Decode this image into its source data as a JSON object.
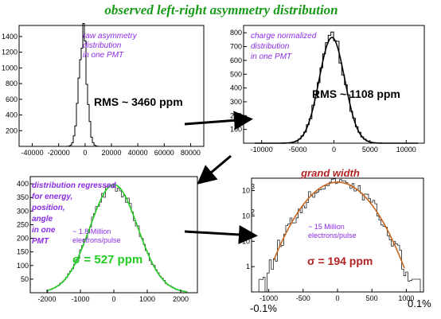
{
  "title": "observed left-right asymmetry distribution",
  "colors": {
    "title": "#1a9a1a",
    "annotation": "#8a2be2",
    "green_curve": "#22cc22",
    "orange_curve": "#c8641e",
    "dark_red_text": "#b22222",
    "sigma_green": "#22cc22",
    "arrow": "#000000"
  },
  "panels": [
    {
      "id": "raw",
      "annotation": [
        "raw asymmetry",
        "distribution",
        "in one PMT"
      ],
      "stat": "RMS ~ 3460 ppm",
      "x_ticks": [
        "-40000",
        "-20000",
        "0",
        "20000",
        "40000",
        "60000",
        "80000"
      ],
      "y_ticks": [
        "200",
        "400",
        "600",
        "800",
        "1000",
        "1200",
        "1400"
      ]
    },
    {
      "id": "charge",
      "annotation": [
        "charge normalized",
        "distribution",
        "in one PMT"
      ],
      "stat": "RMS ~ 1108 ppm",
      "x_ticks": [
        "-10000",
        "-5000",
        "0",
        "5000",
        "10000"
      ],
      "y_ticks": [
        "100",
        "200",
        "300",
        "400",
        "500",
        "600",
        "700",
        "800"
      ]
    },
    {
      "id": "regressed",
      "annotation": [
        "distribution regressed",
        "for energy,",
        "position,",
        "angle",
        "in one",
        "PMT"
      ],
      "electrons": [
        "~ 1.8 Million",
        "electrons/pulse"
      ],
      "stat": "σ = 527 ppm",
      "x_ticks": [
        "-2000",
        "-1000",
        "0",
        "1000",
        "2000"
      ],
      "y_ticks": [
        "50",
        "100",
        "150",
        "200",
        "250",
        "300",
        "350",
        "400"
      ]
    },
    {
      "id": "grand",
      "heading": "grand width",
      "electrons": [
        "~ 15 Million",
        "electrons/pulse"
      ],
      "stat": "σ = 194 ppm",
      "x_ticks": [
        "-1000",
        "-500",
        "0",
        "500",
        "1000"
      ],
      "y_ticks": [
        "1",
        "10",
        "10",
        "10"
      ],
      "y_exp": [
        "",
        "",
        "2",
        "3"
      ],
      "bottom_left": "-0.1%",
      "bottom_right": "0.1%"
    }
  ]
}
